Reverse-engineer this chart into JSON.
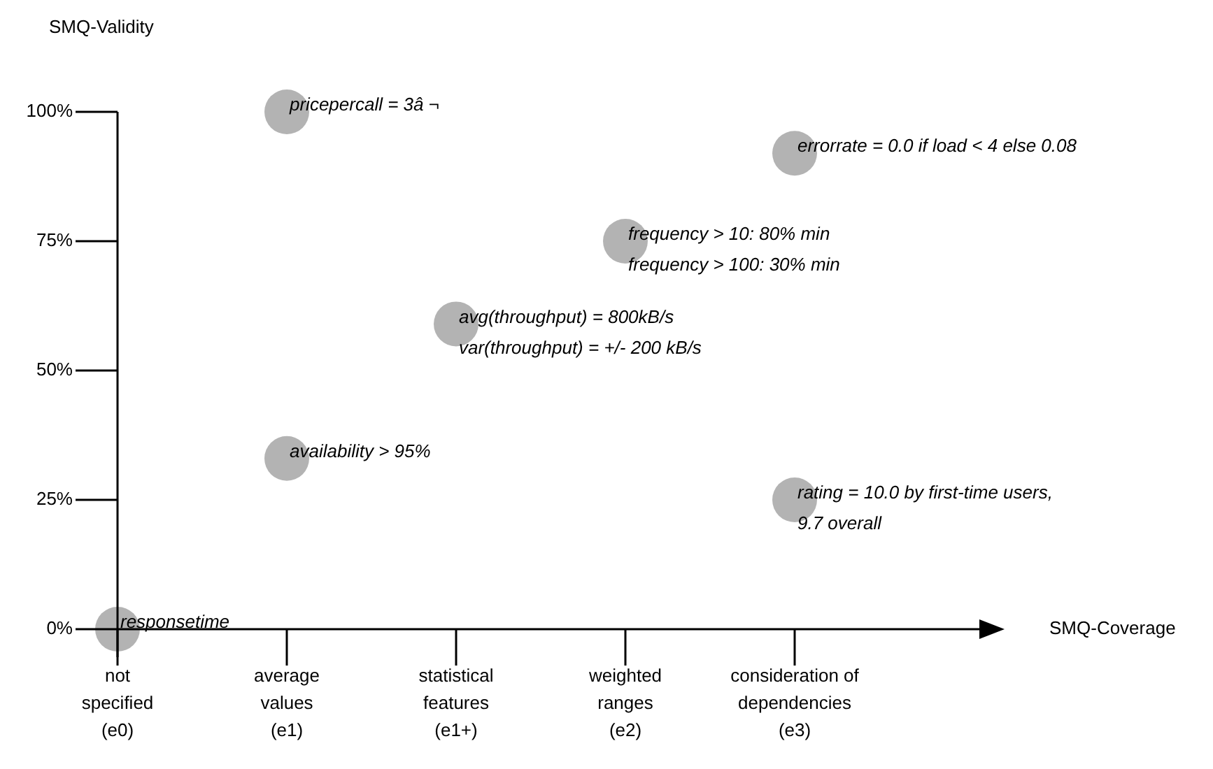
{
  "chart_data": {
    "type": "scatter",
    "xlabel": "SMQ-Coverage",
    "ylabel": "SMQ-Validity",
    "categories": [
      "not\nspecified\n(e0)",
      "average\nvalues\n(e1)",
      "statistical\nfeatures\n(e1+)",
      "weighted\nranges\n(e2)",
      "consideration of\ndependencies\n(e3)"
    ],
    "series": [
      {
        "color": "#b3b3b3",
        "x": [
          "not\nspecified\n(e0)",
          "average\nvalues\n(e1)",
          "average\nvalues\n(e1)",
          "statistical\nfeatures\n(e1+)",
          "weighted\nranges\n(e2)",
          "consideration of\ndependencies\n(e3)",
          "consideration of\ndependencies\n(e3)"
        ],
        "values": [
          0,
          100,
          33,
          59,
          75,
          92,
          25
        ]
      }
    ],
    "ylim": [
      0,
      100
    ],
    "yticks": [
      {
        "value": 0,
        "label": "0%"
      },
      {
        "value": 25,
        "label": "25%"
      },
      {
        "value": 50,
        "label": "50%"
      },
      {
        "value": 75,
        "label": "75%"
      },
      {
        "value": 100,
        "label": "100%"
      }
    ],
    "grid": false,
    "legend": false,
    "marker": "circle",
    "annotations": [
      {
        "text": "responsetime",
        "x": "not\nspecified\n(e0)",
        "y": 0
      },
      {
        "text": "pricepercall = 3â ¬",
        "x": "average\nvalues\n(e1)",
        "y": 100
      },
      {
        "text": "availability > 95%",
        "x": "average\nvalues\n(e1)",
        "y": 33
      },
      {
        "text": "avg(throughput) = 800kB/s\nvar(throughput) = +/- 200 kB/s",
        "x": "statistical\nfeatures\n(e1+)",
        "y": 59
      },
      {
        "text": "frequency > 10: 80% min\nfrequency > 100: 30% min",
        "x": "weighted\nranges\n(e2)",
        "y": 75
      },
      {
        "text": "errorrate = 0.0 if load < 4 else 0.08",
        "x": "consideration of\ndependencies\n(e3)",
        "y": 92
      },
      {
        "text": "rating = 10.0 by first-time users,\n9.7 overall",
        "x": "consideration of\ndependencies\n(e3)",
        "y": 25
      }
    ]
  }
}
